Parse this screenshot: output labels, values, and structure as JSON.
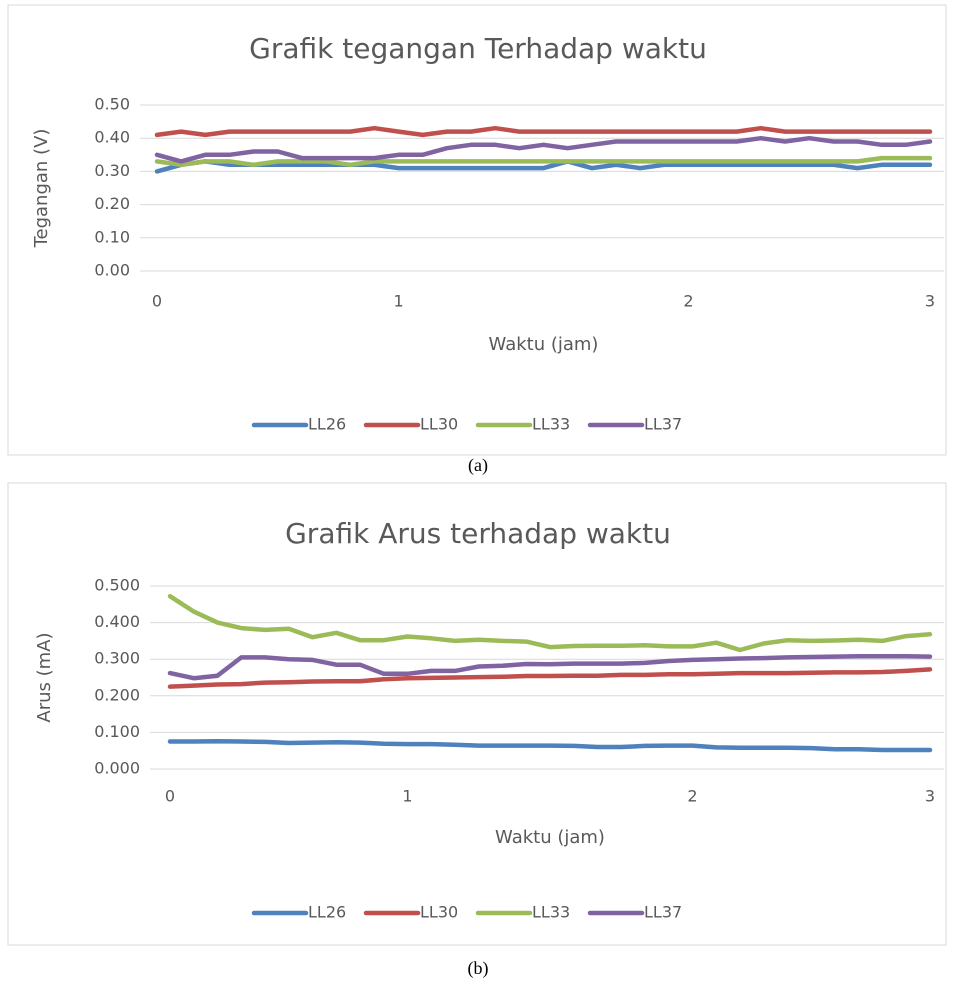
{
  "chart_data": [
    {
      "type": "line",
      "title": "Grafik tegangan Terhadap waktu",
      "x_label": "Waktu (jam)",
      "y_label": "Tegangan (V)",
      "caption": "(a)",
      "categories": [
        "0",
        null,
        null,
        null,
        null,
        null,
        null,
        null,
        null,
        null,
        "1",
        null,
        null,
        null,
        null,
        null,
        null,
        null,
        null,
        null,
        null,
        null,
        "2",
        null,
        null,
        null,
        null,
        null,
        null,
        null,
        null,
        null,
        "3"
      ],
      "ylim": [
        0,
        0.5
      ],
      "yticks": [
        {
          "value": 0,
          "label": "0.00"
        },
        {
          "value": 0.1,
          "label": "0.10"
        },
        {
          "value": 0.2,
          "label": "0.20"
        },
        {
          "value": 0.3,
          "label": "0.30"
        },
        {
          "value": 0.4,
          "label": "0.40"
        },
        {
          "value": 0.5,
          "label": "0.50"
        }
      ],
      "grid": true,
      "legend": "bottom",
      "series": [
        {
          "name": "LL26",
          "color": "#4f81bd",
          "values": [
            0.3,
            0.32,
            0.33,
            0.32,
            0.32,
            0.32,
            0.32,
            0.32,
            0.32,
            0.32,
            0.31,
            0.31,
            0.31,
            0.31,
            0.31,
            0.31,
            0.31,
            0.33,
            0.31,
            0.32,
            0.31,
            0.32,
            0.32,
            0.32,
            0.32,
            0.32,
            0.32,
            0.32,
            0.32,
            0.31,
            0.32,
            0.32,
            0.32
          ]
        },
        {
          "name": "LL30",
          "color": "#c0504d",
          "values": [
            0.41,
            0.42,
            0.41,
            0.42,
            0.42,
            0.42,
            0.42,
            0.42,
            0.42,
            0.43,
            0.42,
            0.41,
            0.42,
            0.42,
            0.43,
            0.42,
            0.42,
            0.42,
            0.42,
            0.42,
            0.42,
            0.42,
            0.42,
            0.42,
            0.42,
            0.43,
            0.42,
            0.42,
            0.42,
            0.42,
            0.42,
            0.42,
            0.42
          ]
        },
        {
          "name": "LL33",
          "color": "#9bbb59",
          "values": [
            0.33,
            0.32,
            0.33,
            0.33,
            0.32,
            0.33,
            0.33,
            0.33,
            0.32,
            0.33,
            0.33,
            0.33,
            0.33,
            0.33,
            0.33,
            0.33,
            0.33,
            0.33,
            0.33,
            0.33,
            0.33,
            0.33,
            0.33,
            0.33,
            0.33,
            0.33,
            0.33,
            0.33,
            0.33,
            0.33,
            0.34,
            0.34,
            0.34
          ]
        },
        {
          "name": "LL37",
          "color": "#8064a2",
          "values": [
            0.35,
            0.33,
            0.35,
            0.35,
            0.36,
            0.36,
            0.34,
            0.34,
            0.34,
            0.34,
            0.35,
            0.35,
            0.37,
            0.38,
            0.38,
            0.37,
            0.38,
            0.37,
            0.38,
            0.39,
            0.39,
            0.39,
            0.39,
            0.39,
            0.39,
            0.4,
            0.39,
            0.4,
            0.39,
            0.39,
            0.38,
            0.38,
            0.39
          ]
        }
      ]
    },
    {
      "type": "line",
      "title": "Grafik Arus terhadap waktu",
      "x_label": "Waktu (jam)",
      "y_label": "Arus (mA)",
      "caption": "(b)",
      "categories": [
        "0",
        null,
        null,
        null,
        null,
        null,
        null,
        null,
        null,
        null,
        "1",
        null,
        null,
        null,
        null,
        null,
        null,
        null,
        null,
        null,
        null,
        null,
        "2",
        null,
        null,
        null,
        null,
        null,
        null,
        null,
        null,
        null,
        "3"
      ],
      "ylim": [
        0,
        0.5
      ],
      "yticks": [
        {
          "value": 0,
          "label": "0.000"
        },
        {
          "value": 0.1,
          "label": "0.100"
        },
        {
          "value": 0.2,
          "label": "0.200"
        },
        {
          "value": 0.3,
          "label": "0.300"
        },
        {
          "value": 0.4,
          "label": "0.400"
        },
        {
          "value": 0.5,
          "label": "0.500"
        }
      ],
      "grid": true,
      "legend": "bottom",
      "series": [
        {
          "name": "LL26",
          "color": "#4f81bd",
          "values": [
            0.075,
            0.075,
            0.076,
            0.075,
            0.074,
            0.071,
            0.072,
            0.073,
            0.072,
            0.069,
            0.068,
            0.068,
            0.066,
            0.064,
            0.064,
            0.064,
            0.064,
            0.063,
            0.06,
            0.06,
            0.063,
            0.064,
            0.064,
            0.059,
            0.058,
            0.058,
            0.058,
            0.057,
            0.054,
            0.054,
            0.052,
            0.052,
            0.052
          ]
        },
        {
          "name": "LL30",
          "color": "#c0504d",
          "values": [
            0.225,
            0.228,
            0.231,
            0.232,
            0.236,
            0.237,
            0.239,
            0.24,
            0.24,
            0.245,
            0.248,
            0.249,
            0.25,
            0.251,
            0.252,
            0.254,
            0.254,
            0.255,
            0.255,
            0.257,
            0.257,
            0.259,
            0.259,
            0.26,
            0.262,
            0.262,
            0.262,
            0.263,
            0.264,
            0.264,
            0.265,
            0.268,
            0.272
          ]
        },
        {
          "name": "LL33",
          "color": "#9bbb59",
          "values": [
            0.472,
            0.43,
            0.4,
            0.385,
            0.38,
            0.383,
            0.36,
            0.372,
            0.352,
            0.352,
            0.362,
            0.357,
            0.35,
            0.353,
            0.35,
            0.348,
            0.333,
            0.336,
            0.337,
            0.337,
            0.338,
            0.335,
            0.335,
            0.345,
            0.325,
            0.343,
            0.352,
            0.35,
            0.351,
            0.353,
            0.35,
            0.363,
            0.368
          ]
        },
        {
          "name": "LL37",
          "color": "#8064a2",
          "values": [
            0.262,
            0.248,
            0.255,
            0.305,
            0.305,
            0.3,
            0.298,
            0.285,
            0.285,
            0.26,
            0.26,
            0.268,
            0.268,
            0.28,
            0.282,
            0.287,
            0.286,
            0.288,
            0.288,
            0.288,
            0.29,
            0.295,
            0.298,
            0.3,
            0.302,
            0.303,
            0.305,
            0.306,
            0.307,
            0.308,
            0.308,
            0.308,
            0.307
          ]
        }
      ]
    }
  ]
}
